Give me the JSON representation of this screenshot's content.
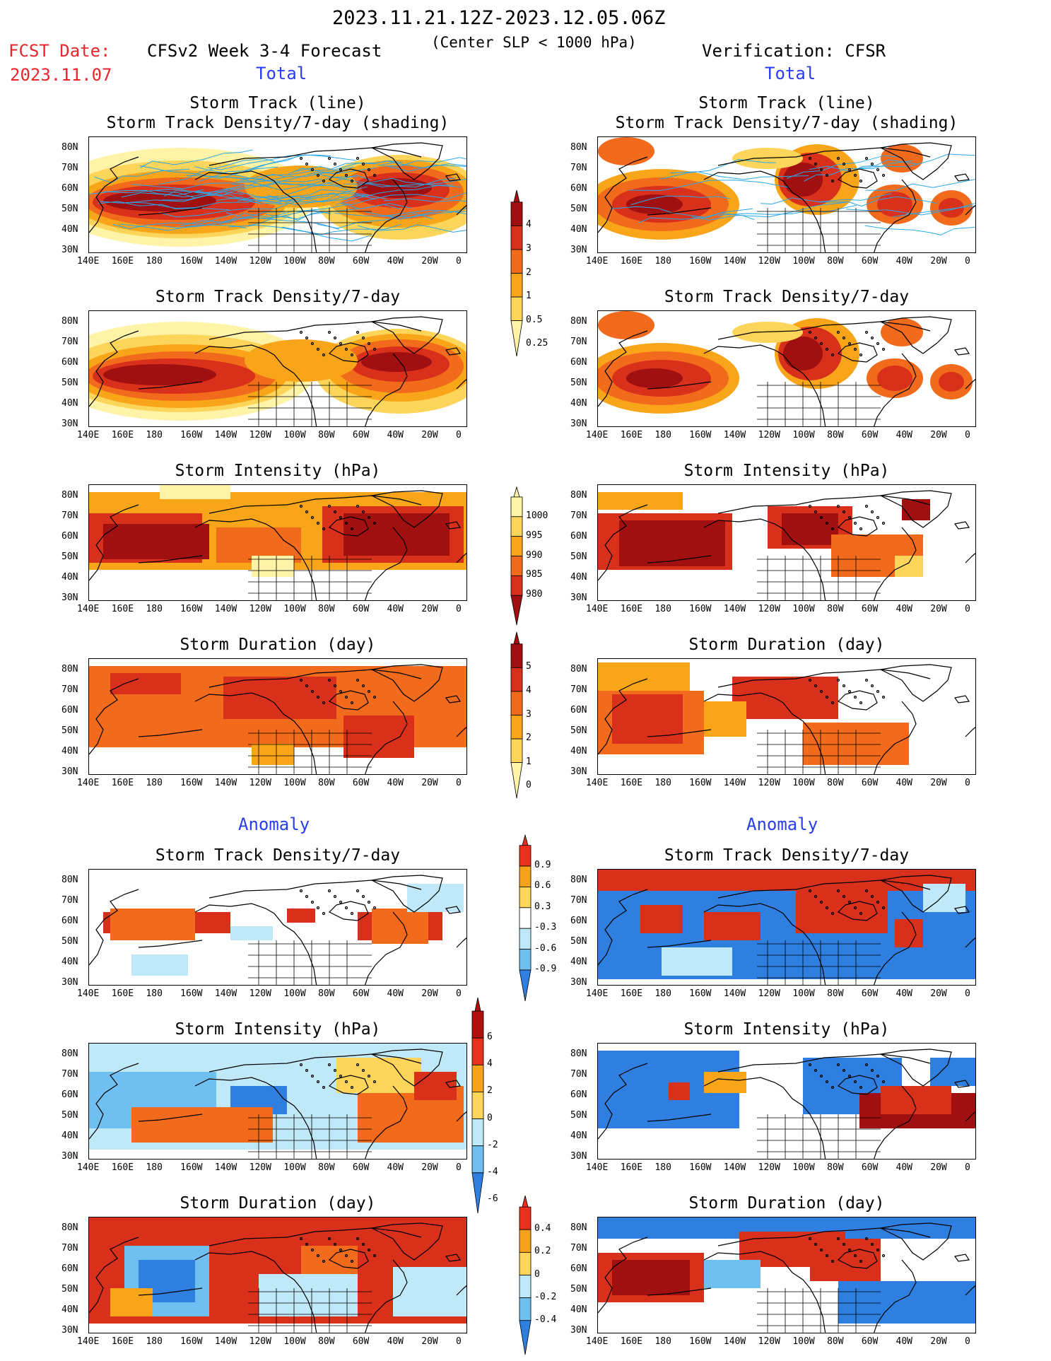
{
  "header": {
    "date_range": "2023.11.21.12Z-2023.12.05.06Z",
    "fcst_label": "FCST Date:",
    "fcst_date": "2023.11.07",
    "model_title": "CFSv2 Week 3-4 Forecast",
    "criterion": "(Center SLP < 1000 hPa)",
    "verification": "Verification: CFSR",
    "total_left": "Total",
    "total_right": "Total",
    "anomaly_left": "Anomaly",
    "anomaly_right": "Anomaly"
  },
  "panel_titles": {
    "track_line": "Storm Track (line)",
    "track_shading": "Storm Track Density/7-day (shading)",
    "density": "Storm Track Density/7-day",
    "intensity": "Storm Intensity (hPa)",
    "duration": "Storm Duration (day)"
  },
  "axes": {
    "lat_ticks": [
      "80N",
      "70N",
      "60N",
      "50N",
      "40N",
      "30N"
    ],
    "lon_ticks": [
      "140E",
      "160E",
      "180",
      "160W",
      "140W",
      "120W",
      "100W",
      "80W",
      "60W",
      "40W",
      "20W",
      "0"
    ]
  },
  "colorbars": {
    "density_total": {
      "labels": [
        "4",
        "3",
        "2",
        "1",
        "0.5",
        "0.25"
      ],
      "colors": [
        "#a01010",
        "#d8301a",
        "#f26a1b",
        "#f9a51a",
        "#fdd55a",
        "#fff3a8"
      ]
    },
    "intensity_total": {
      "labels": [
        "1000",
        "995",
        "990",
        "985",
        "980"
      ],
      "colors": [
        "#fff3a8",
        "#fdd55a",
        "#f9a51a",
        "#f26a1b",
        "#d8301a",
        "#a01010"
      ]
    },
    "duration_total": {
      "labels": [
        "5",
        "4",
        "3",
        "2",
        "1",
        "0"
      ],
      "colors": [
        "#a01010",
        "#d8301a",
        "#f26a1b",
        "#f9a51a",
        "#fdd55a",
        "#fff3a8"
      ]
    },
    "density_anom": {
      "labels": [
        "0.9",
        "0.6",
        "0.3",
        "-0.3",
        "-0.6",
        "-0.9"
      ],
      "colors": [
        "#e8301c",
        "#f7a21b",
        "#fdd55a",
        "#ffffff",
        "#bfe8f8",
        "#6fbff0",
        "#2e7fe0"
      ]
    },
    "intensity_anom": {
      "labels": [
        "6",
        "4",
        "2",
        "0",
        "-2",
        "-4",
        "-6"
      ],
      "colors": [
        "#b01010",
        "#e8301c",
        "#f7a21b",
        "#fdd55a",
        "#bfe8f8",
        "#6fbff0",
        "#2e7fe0"
      ]
    },
    "duration_anom": {
      "labels": [
        "0.4",
        "0.2",
        "0",
        "-0.2",
        "-0.4"
      ],
      "colors": [
        "#e8301c",
        "#f7a21b",
        "#fdd55a",
        "#bfe8f8",
        "#6fbff0",
        "#2e7fe0"
      ]
    }
  },
  "palette": {
    "dark_red": "#a01010",
    "red": "#d8301a",
    "orange": "#f26a1b",
    "light_orange": "#f9a51a",
    "yellow": "#fdd55a",
    "pale_yellow": "#fff3a8",
    "track_line": "#2aa7e8",
    "anom_blue": "#2e7fe0",
    "anom_mid_blue": "#6fbff0",
    "anom_light_blue": "#bfe8f8"
  }
}
